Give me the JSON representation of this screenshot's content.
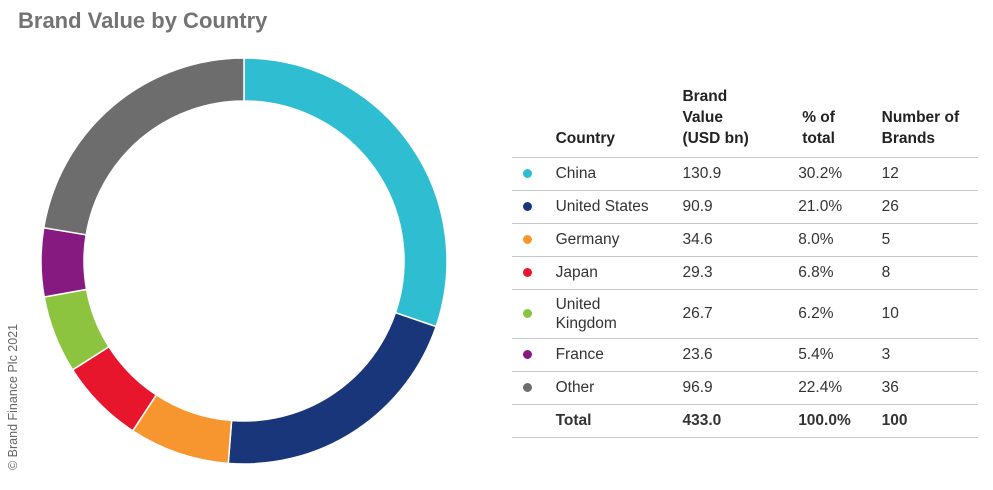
{
  "title": "Brand Value by Country",
  "copyright": "© Brand Finance Plc 2021",
  "table": {
    "headers": {
      "country": "Country",
      "value_line1": "Brand",
      "value_line2": "Value",
      "value_line3": "(USD bn)",
      "pct_line1": "% of",
      "pct_line2": "total",
      "brands_line1": "Number of",
      "brands_line2": "Brands"
    },
    "rows": [
      {
        "country": "China",
        "value": "130.9",
        "pct": "30.2%",
        "brands": "12",
        "color": "#2ebdd1"
      },
      {
        "country": "United States",
        "value": "90.9",
        "pct": "21.0%",
        "brands": "26",
        "color": "#1a367b"
      },
      {
        "country": "Germany",
        "value": "34.6",
        "pct": "8.0%",
        "brands": "5",
        "color": "#f7962e"
      },
      {
        "country": "Japan",
        "value": "29.3",
        "pct": "6.8%",
        "brands": "8",
        "color": "#e8162c"
      },
      {
        "country_line1": "United",
        "country_line2": "Kingdom",
        "value": "26.7",
        "pct": "6.2%",
        "brands": "10",
        "color": "#8cc43f"
      },
      {
        "country": "France",
        "value": "23.6",
        "pct": "5.4%",
        "brands": "3",
        "color": "#861a81"
      },
      {
        "country": "Other",
        "value": "96.9",
        "pct": "22.4%",
        "brands": "36",
        "color": "#6d6d6d"
      }
    ],
    "total": {
      "label": "Total",
      "value": "433.0",
      "pct": "100.0%",
      "brands": "100"
    }
  },
  "chart_data": {
    "type": "pie",
    "variant": "donut",
    "categories": [
      "China",
      "United States",
      "Germany",
      "Japan",
      "United Kingdom",
      "France",
      "Other"
    ],
    "values": [
      130.9,
      90.9,
      34.6,
      29.3,
      26.7,
      23.6,
      96.9
    ],
    "percentages": [
      30.2,
      21.0,
      8.0,
      6.8,
      6.2,
      5.4,
      22.4
    ],
    "colors": [
      "#2ebdd1",
      "#1a367b",
      "#f7962e",
      "#e8162c",
      "#8cc43f",
      "#861a81",
      "#6d6d6d"
    ],
    "start": "12 o'clock, clockwise",
    "title": "Brand Value by Country"
  }
}
